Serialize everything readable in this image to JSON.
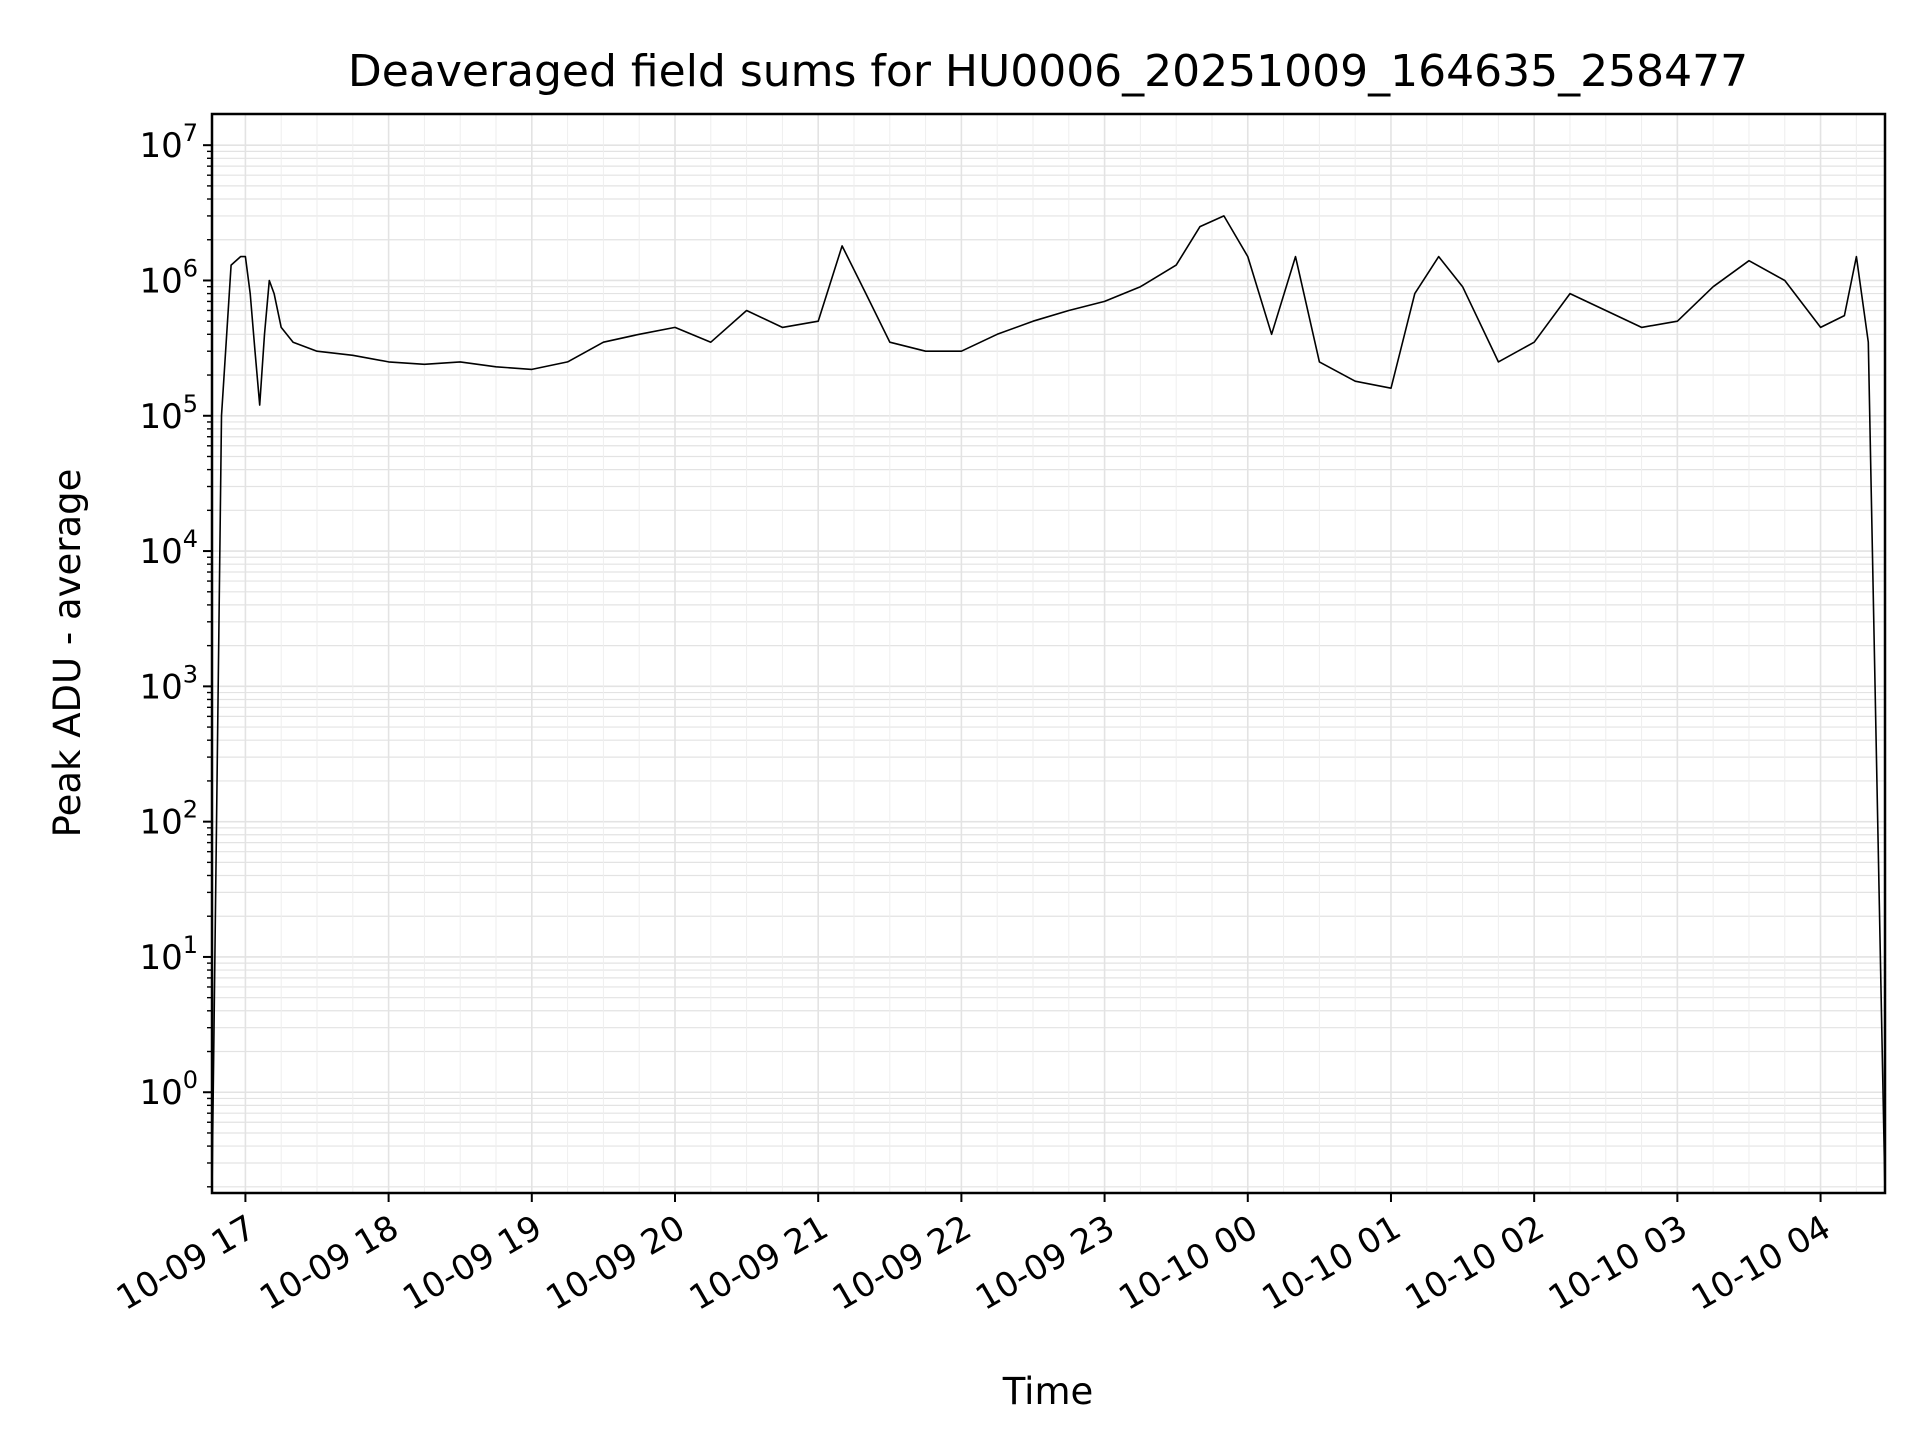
{
  "chart_data": {
    "type": "line",
    "title": "Deaveraged field sums for HU0006_20251009_164635_258477",
    "xlabel": "Time",
    "ylabel": "Peak ADU - average",
    "yscale": "log",
    "ylim": [
      0.18,
      17000000
    ],
    "xlim": [
      "2025-10-09 16:46",
      "2025-10-10 04:27"
    ],
    "grid": "major and minor",
    "line_color": "#000000",
    "x_ticks": [
      {
        "value": "2025-10-09 17:00",
        "label": "10-09 17"
      },
      {
        "value": "2025-10-09 18:00",
        "label": "10-09 18"
      },
      {
        "value": "2025-10-09 19:00",
        "label": "10-09 19"
      },
      {
        "value": "2025-10-09 20:00",
        "label": "10-09 20"
      },
      {
        "value": "2025-10-09 21:00",
        "label": "10-09 21"
      },
      {
        "value": "2025-10-09 22:00",
        "label": "10-09 22"
      },
      {
        "value": "2025-10-09 23:00",
        "label": "10-09 23"
      },
      {
        "value": "2025-10-10 00:00",
        "label": "10-10 00"
      },
      {
        "value": "2025-10-10 01:00",
        "label": "10-10 01"
      },
      {
        "value": "2025-10-10 02:00",
        "label": "10-10 02"
      },
      {
        "value": "2025-10-10 03:00",
        "label": "10-10 03"
      },
      {
        "value": "2025-10-10 04:00",
        "label": "10-10 04"
      }
    ],
    "y_ticks": [
      {
        "value": 1,
        "base": "10",
        "exp": "0"
      },
      {
        "value": 10,
        "base": "10",
        "exp": "1"
      },
      {
        "value": 100,
        "base": "10",
        "exp": "2"
      },
      {
        "value": 1000,
        "base": "10",
        "exp": "3"
      },
      {
        "value": 10000,
        "base": "10",
        "exp": "4"
      },
      {
        "value": 100000,
        "base": "10",
        "exp": "5"
      },
      {
        "value": 1000000,
        "base": "10",
        "exp": "6"
      },
      {
        "value": 10000000,
        "base": "10",
        "exp": "7"
      }
    ],
    "series": [
      {
        "values_x": [
          "2025-10-09 16:46",
          "2025-10-09 16:50",
          "2025-10-09 16:54",
          "2025-10-09 16:58",
          "2025-10-09 17:00",
          "2025-10-09 17:02",
          "2025-10-09 17:04",
          "2025-10-09 17:06",
          "2025-10-09 17:08",
          "2025-10-09 17:10",
          "2025-10-09 17:12",
          "2025-10-09 17:15",
          "2025-10-09 17:20",
          "2025-10-09 17:30",
          "2025-10-09 17:45",
          "2025-10-09 18:00",
          "2025-10-09 18:15",
          "2025-10-09 18:30",
          "2025-10-09 18:45",
          "2025-10-09 19:00",
          "2025-10-09 19:15",
          "2025-10-09 19:30",
          "2025-10-09 19:45",
          "2025-10-09 20:00",
          "2025-10-09 20:15",
          "2025-10-09 20:30",
          "2025-10-09 20:45",
          "2025-10-09 21:00",
          "2025-10-09 21:10",
          "2025-10-09 21:20",
          "2025-10-09 21:30",
          "2025-10-09 21:45",
          "2025-10-09 22:00",
          "2025-10-09 22:15",
          "2025-10-09 22:30",
          "2025-10-09 22:45",
          "2025-10-09 23:00",
          "2025-10-09 23:15",
          "2025-10-09 23:30",
          "2025-10-09 23:40",
          "2025-10-09 23:50",
          "2025-10-10 00:00",
          "2025-10-10 00:10",
          "2025-10-10 00:20",
          "2025-10-10 00:30",
          "2025-10-10 00:45",
          "2025-10-10 01:00",
          "2025-10-10 01:10",
          "2025-10-10 01:20",
          "2025-10-10 01:30",
          "2025-10-10 01:45",
          "2025-10-10 02:00",
          "2025-10-10 02:15",
          "2025-10-10 02:30",
          "2025-10-10 02:45",
          "2025-10-10 03:00",
          "2025-10-10 03:15",
          "2025-10-10 03:30",
          "2025-10-10 03:45",
          "2025-10-10 04:00",
          "2025-10-10 04:10",
          "2025-10-10 04:15",
          "2025-10-10 04:20",
          "2025-10-10 04:27"
        ],
        "values": [
          0.18,
          100000,
          1300000,
          1500000,
          1500000,
          800000,
          300000,
          120000,
          400000,
          1000000,
          800000,
          450000,
          350000,
          300000,
          280000,
          250000,
          240000,
          250000,
          230000,
          220000,
          250000,
          350000,
          400000,
          450000,
          350000,
          600000,
          450000,
          500000,
          1800000,
          800000,
          350000,
          300000,
          300000,
          400000,
          500000,
          600000,
          700000,
          900000,
          1300000,
          2500000,
          3000000,
          1500000,
          400000,
          1500000,
          250000,
          180000,
          160000,
          800000,
          1500000,
          900000,
          250000,
          350000,
          800000,
          600000,
          450000,
          500000,
          900000,
          1400000,
          1000000,
          450000,
          550000,
          1500000,
          350000,
          0.18
        ]
      }
    ]
  }
}
